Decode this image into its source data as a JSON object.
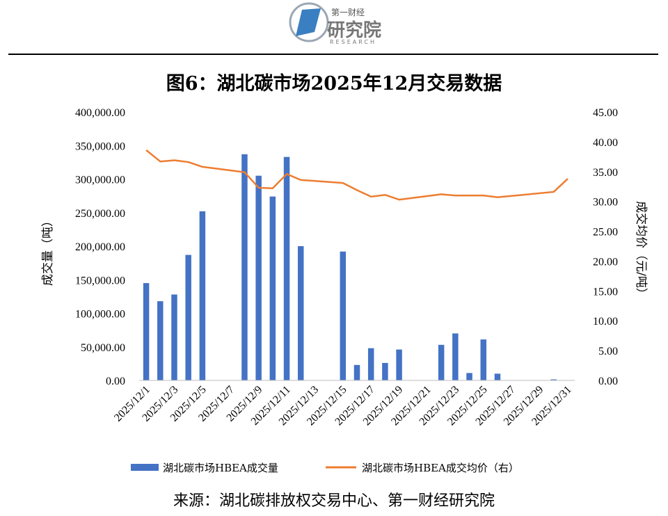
{
  "header": {
    "logo_small": "第一财经",
    "logo_main": "研究院",
    "logo_sub": "RESEARCH",
    "title": "图6：湖北碳市场2025年12月交易数据"
  },
  "source": "来源：湖北碳排放权交易中心、第一财经研究院",
  "colors": {
    "bar": "#4472C4",
    "line": "#ED7D31"
  },
  "chart_data": {
    "type": "bar+line",
    "title": "图6：湖北碳市场2025年12月交易数据",
    "ylabel": "成交量（吨）",
    "y2label": "成交均价（元/吨）",
    "ylim": [
      0,
      400000
    ],
    "y2lim": [
      0,
      45
    ],
    "y_ticks": [
      "0.00",
      "50,000.00",
      "100,000.00",
      "150,000.00",
      "200,000.00",
      "250,000.00",
      "300,000.00",
      "350,000.00",
      "400,000.00"
    ],
    "y2_ticks": [
      "0.00",
      "5.00",
      "10.00",
      "15.00",
      "20.00",
      "25.00",
      "30.00",
      "35.00",
      "40.00",
      "45.00"
    ],
    "x_ticks": [
      "2025/12/1",
      "2025/12/3",
      "2025/12/5",
      "2025/12/7",
      "2025/12/9",
      "2025/12/11",
      "2025/12/13",
      "2025/12/15",
      "2025/12/17",
      "2025/12/19",
      "2025/12/21",
      "2025/12/23",
      "2025/12/25",
      "2025/12/27",
      "2025/12/29",
      "2025/12/31"
    ],
    "legend_position": "bottom",
    "series": [
      {
        "name": "湖北碳市场HBEA成交量",
        "type": "bar",
        "axis": "left",
        "points": [
          {
            "x": "2025/12/1",
            "y": 145000
          },
          {
            "x": "2025/12/2",
            "y": 118000
          },
          {
            "x": "2025/12/3",
            "y": 128000
          },
          {
            "x": "2025/12/4",
            "y": 187000
          },
          {
            "x": "2025/12/5",
            "y": 252000
          },
          {
            "x": "2025/12/8",
            "y": 337000
          },
          {
            "x": "2025/12/9",
            "y": 305000
          },
          {
            "x": "2025/12/10",
            "y": 274000
          },
          {
            "x": "2025/12/11",
            "y": 333000
          },
          {
            "x": "2025/12/12",
            "y": 200000
          },
          {
            "x": "2025/12/15",
            "y": 192000
          },
          {
            "x": "2025/12/16",
            "y": 23000
          },
          {
            "x": "2025/12/17",
            "y": 48000
          },
          {
            "x": "2025/12/18",
            "y": 26000
          },
          {
            "x": "2025/12/19",
            "y": 46000
          },
          {
            "x": "2025/12/22",
            "y": 53000
          },
          {
            "x": "2025/12/23",
            "y": 70000
          },
          {
            "x": "2025/12/24",
            "y": 11000
          },
          {
            "x": "2025/12/25",
            "y": 61000
          },
          {
            "x": "2025/12/26",
            "y": 10000
          },
          {
            "x": "2025/12/30",
            "y": 1500
          }
        ]
      },
      {
        "name": "湖北碳市场HBEA成交均价（右）",
        "type": "line",
        "axis": "right",
        "points": [
          {
            "x": "2025/12/1",
            "y": 38.6
          },
          {
            "x": "2025/12/2",
            "y": 36.7
          },
          {
            "x": "2025/12/3",
            "y": 36.9
          },
          {
            "x": "2025/12/4",
            "y": 36.6
          },
          {
            "x": "2025/12/5",
            "y": 35.8
          },
          {
            "x": "2025/12/8",
            "y": 34.9
          },
          {
            "x": "2025/12/9",
            "y": 32.3
          },
          {
            "x": "2025/12/10",
            "y": 32.2
          },
          {
            "x": "2025/12/11",
            "y": 34.6
          },
          {
            "x": "2025/12/12",
            "y": 33.6
          },
          {
            "x": "2025/12/15",
            "y": 33.1
          },
          {
            "x": "2025/12/16",
            "y": 31.9
          },
          {
            "x": "2025/12/17",
            "y": 30.8
          },
          {
            "x": "2025/12/18",
            "y": 31.1
          },
          {
            "x": "2025/12/19",
            "y": 30.3
          },
          {
            "x": "2025/12/22",
            "y": 31.2
          },
          {
            "x": "2025/12/23",
            "y": 31.0
          },
          {
            "x": "2025/12/25",
            "y": 31.0
          },
          {
            "x": "2025/12/26",
            "y": 30.7
          },
          {
            "x": "2025/12/30",
            "y": 31.6
          },
          {
            "x": "2025/12/31",
            "y": 33.8
          }
        ]
      }
    ]
  }
}
